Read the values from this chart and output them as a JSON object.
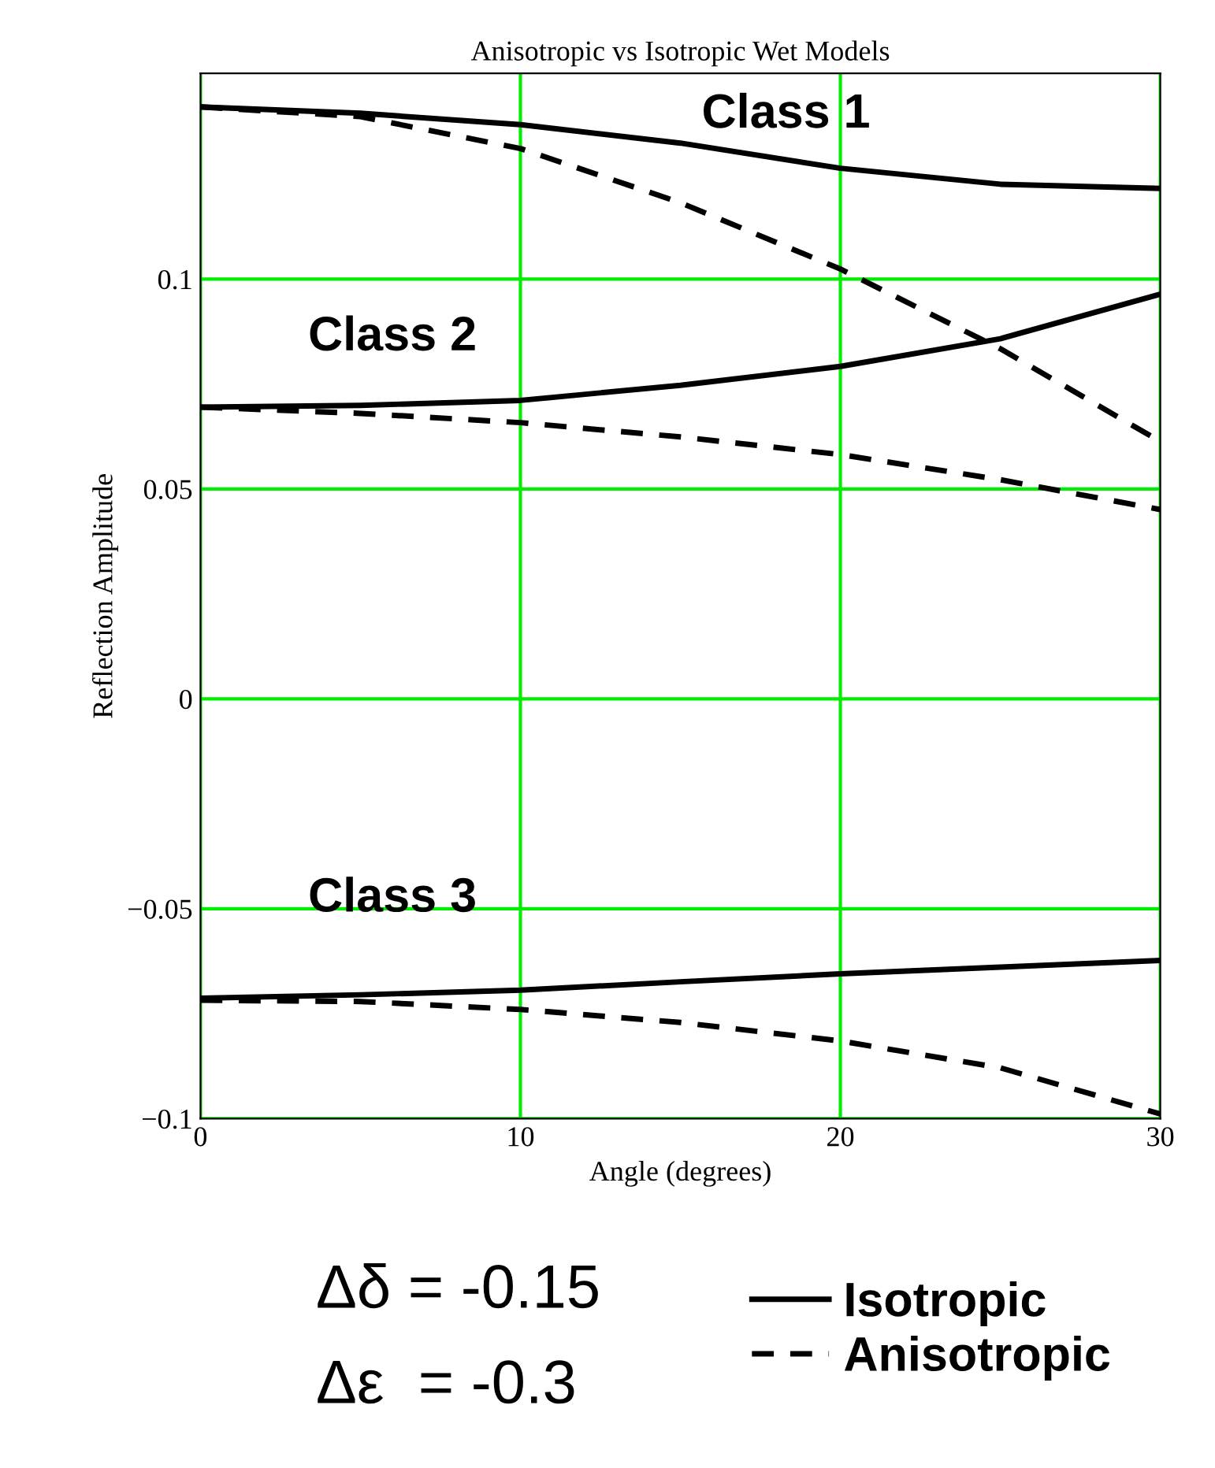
{
  "chart_data": {
    "type": "line",
    "title": "Anisotropic vs Isotropic Wet Models",
    "xlabel": "Angle (degrees)",
    "ylabel": "Reflection Amplitude",
    "x": [
      0,
      5,
      10,
      15,
      20,
      25,
      30
    ],
    "series": [
      {
        "name": "Isotropic",
        "color": "#000000",
        "line_style": "solid",
        "values": [
          0.141,
          0.1395,
          0.1368,
          0.1324,
          0.1264,
          0.1226,
          0.1216
        ]
      },
      {
        "name": "Anisotropic",
        "color": "#000000",
        "line_style": "dashed",
        "values": [
          0.141,
          0.1387,
          0.1311,
          0.1182,
          0.1024,
          0.0834,
          0.0613
        ]
      },
      {
        "color": "#000000",
        "line_style": "solid",
        "values": [
          0.0695,
          0.0699,
          0.0711,
          0.0747,
          0.0792,
          0.0858,
          0.0964
        ]
      },
      {
        "color": "#000000",
        "line_style": "dashed",
        "values": [
          0.0695,
          0.068,
          0.0658,
          0.0624,
          0.0582,
          0.0522,
          0.0451
        ]
      },
      {
        "color": "#000000",
        "line_style": "solid",
        "values": [
          -0.0713,
          -0.0705,
          -0.0694,
          -0.0674,
          -0.0655,
          -0.0639,
          -0.0623
        ]
      },
      {
        "color": "#000000",
        "line_style": "dashed",
        "values": [
          -0.0718,
          -0.0721,
          -0.074,
          -0.0771,
          -0.0815,
          -0.0879,
          -0.0989
        ]
      }
    ],
    "xlim": [
      0,
      30
    ],
    "xticks": [
      0,
      10,
      20,
      30
    ],
    "ylim": [
      -0.1,
      0.149
    ],
    "yticks": [
      -0.1,
      -0.05,
      0,
      0.05,
      0.1
    ],
    "grid": true,
    "legend": "bottom right",
    "annotations": [
      "Class 1",
      "Class 2",
      "Class 3",
      "Δδ = -0.15",
      "Δε  = -0.3"
    ]
  }
}
